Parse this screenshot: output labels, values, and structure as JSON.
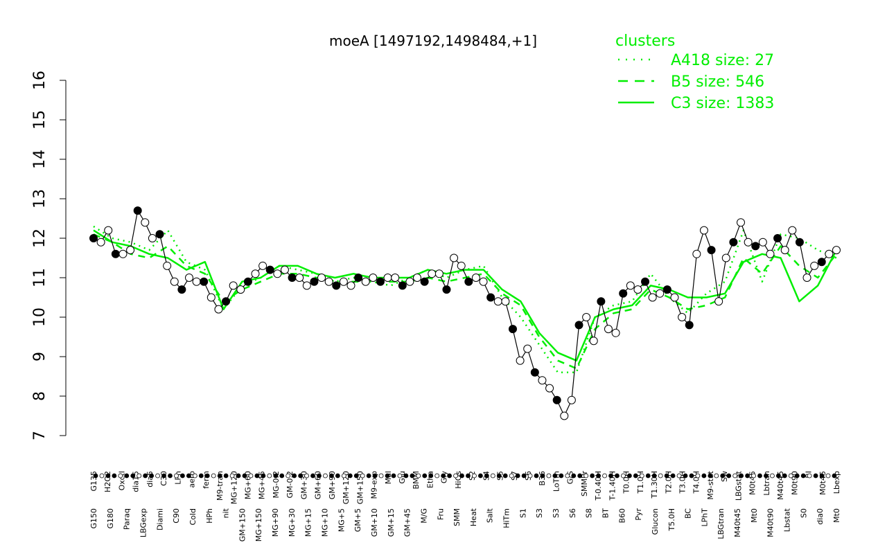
{
  "chart_data": {
    "type": "line",
    "title": "moeA [1497192,1498484,+1]",
    "xlabel": "",
    "ylabel": "",
    "ylim": [
      7,
      16
    ],
    "yticks": [
      7,
      8,
      9,
      10,
      11,
      12,
      13,
      14,
      15,
      16
    ],
    "legend": {
      "title": "clusters",
      "position": "top-right",
      "entries": [
        {
          "label": "A418 size: 27",
          "style": "dotted"
        },
        {
          "label": "B5 size: 546",
          "style": "dashed"
        },
        {
          "label": "C3 size: 1383",
          "style": "solid"
        }
      ]
    },
    "x_labels_upper": [
      "G135",
      "H2O2",
      "Oxctl",
      "dia15",
      "dia5",
      "C30",
      "LPh",
      "aero",
      "ferm",
      "M9-tran",
      "MG+120",
      "MG+60",
      "MG+45",
      "MG-0.2",
      "GM-0.2",
      "GM+30",
      "GM+60",
      "GM+90",
      "GM+120",
      "GM+150",
      "M9-exp",
      "Mal",
      "Glu",
      "BMM",
      "Etha",
      "Gly",
      "HiOs",
      "S2",
      "S4",
      "S5",
      "S7",
      "S6",
      "B36",
      "LoTm",
      "G/S",
      "SMMPr",
      "T-0.40H",
      "T-1.40H",
      "T0.0H",
      "T1.0H",
      "T1.30H",
      "T2.0H",
      "T3.0H",
      "T4.0H",
      "M9-stat",
      "Sw",
      "LBGstat",
      "M0t45",
      "Lbtran",
      "M40t45",
      "M0t90",
      "BI",
      "M0t45",
      "Lbexp"
    ],
    "x_labels_lower": [
      "G150",
      "G180",
      "Paraq",
      "LBGexp",
      "Diami",
      "C90",
      "Cold",
      "HPh",
      "nit",
      "GM+150",
      "MG+150",
      "MG+90",
      "MG+30",
      "MG+15",
      "MG+10",
      "MG+5",
      "GM+5",
      "GM+10",
      "GM+15",
      "GM+45",
      "M/G",
      "Fru",
      "SMM",
      "Heat",
      "Salt",
      "HiTm",
      "S1",
      "S3",
      "S3",
      "S6",
      "S8",
      "BT",
      "B60",
      "Pyr",
      "Glucon",
      "T5.0H",
      "BC",
      "LPhT",
      "LBGtran",
      "M40t45",
      "Mt0",
      "M40t90",
      "Lbstat",
      "S0",
      "dia0",
      "Mt0"
    ],
    "series": [
      {
        "name": "A418 size: 27",
        "values": [
          12.3,
          12.0,
          11.9,
          11.7,
          12.2,
          11.4,
          11.2,
          10.2,
          10.8,
          11.0,
          11.3,
          11.2,
          11.1,
          10.9,
          11.0,
          10.9,
          10.8,
          11.0,
          11.2,
          11.0,
          11.2,
          11.3,
          10.5,
          10.0,
          9.3,
          8.6,
          8.6,
          10.0,
          10.3,
          10.4,
          11.1,
          10.5,
          10.1,
          10.6,
          10.9,
          12.2,
          10.9,
          12.1,
          12.0,
          11.7,
          11.5
        ]
      },
      {
        "name": "B5 size: 546",
        "values": [
          12.1,
          11.9,
          11.6,
          11.5,
          11.8,
          11.3,
          11.1,
          10.4,
          10.7,
          10.9,
          11.1,
          11.1,
          11.0,
          10.9,
          10.9,
          10.9,
          10.9,
          10.9,
          11.0,
          10.9,
          11.0,
          11.1,
          10.6,
          10.3,
          9.5,
          8.9,
          8.7,
          9.7,
          10.1,
          10.2,
          10.7,
          10.5,
          10.2,
          10.3,
          10.5,
          11.5,
          11.1,
          11.8,
          11.3,
          11.0,
          11.6
        ]
      },
      {
        "name": "C3 size: 1383",
        "values": [
          12.2,
          11.9,
          11.8,
          11.6,
          11.5,
          11.2,
          11.4,
          10.2,
          10.9,
          11.0,
          11.3,
          11.3,
          11.1,
          11.0,
          11.1,
          11.0,
          11.0,
          11.0,
          11.2,
          11.1,
          11.2,
          11.2,
          10.7,
          10.4,
          9.6,
          9.1,
          8.9,
          10.0,
          10.2,
          10.3,
          10.8,
          10.7,
          10.5,
          10.5,
          10.6,
          11.4,
          11.6,
          11.5,
          10.4,
          10.8,
          11.7
        ]
      },
      {
        "name": "",
        "values": [
          12.0,
          11.9,
          12.2,
          11.6,
          11.6,
          11.7,
          12.7,
          12.4,
          12.0,
          12.1,
          11.3,
          10.9,
          10.7,
          11.0,
          10.9,
          10.9,
          10.5,
          10.2,
          10.4,
          10.8,
          10.7,
          10.9,
          11.1,
          11.3,
          11.2,
          11.1,
          11.2,
          11.0,
          11.0,
          10.8,
          10.9,
          11.0,
          10.9,
          10.8,
          10.9,
          10.8,
          11.0,
          10.9,
          11.0,
          10.9,
          11.0,
          11.0,
          10.8,
          10.9,
          11.0,
          10.9,
          11.1,
          11.1,
          10.7,
          11.5,
          11.3,
          10.9,
          11.0,
          10.9,
          10.5,
          10.4,
          10.4,
          9.7,
          8.9,
          9.2,
          8.6,
          8.4,
          8.2,
          7.9,
          7.5,
          7.9,
          9.8,
          10.0,
          9.4,
          10.4,
          9.7,
          9.6,
          10.6,
          10.8,
          10.7,
          10.9,
          10.5,
          10.6,
          10.7,
          10.5,
          10.0,
          9.8,
          11.6,
          12.2,
          11.7,
          10.4,
          11.5,
          11.9,
          12.4,
          11.9,
          11.8,
          11.9,
          11.6,
          12.0,
          11.7,
          12.2,
          11.9,
          11.0,
          11.3,
          11.4,
          11.6,
          11.7
        ]
      }
    ]
  }
}
